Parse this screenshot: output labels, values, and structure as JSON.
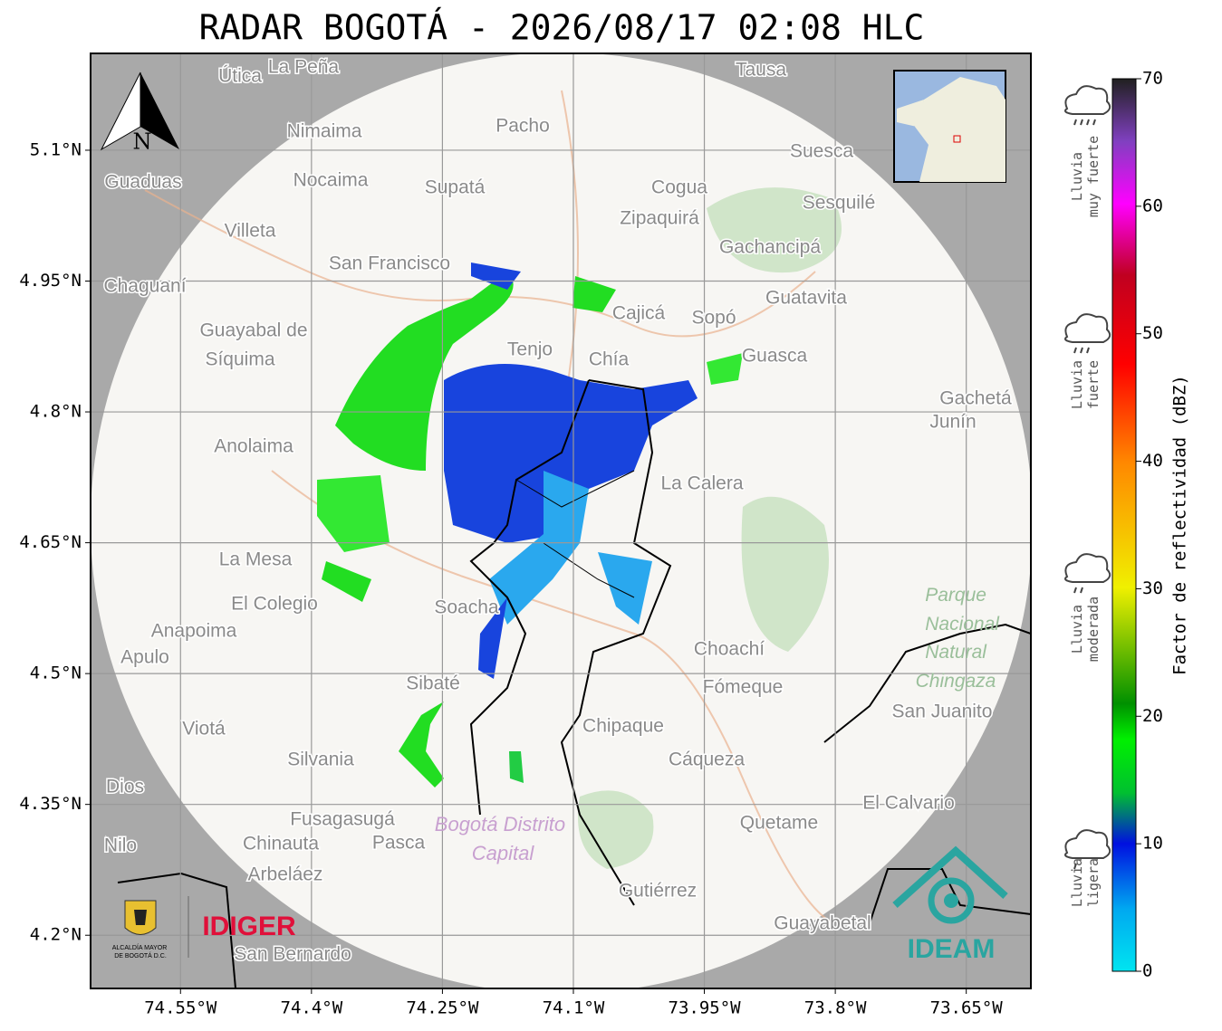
{
  "title": "RADAR BOGOTÁ - 2026/08/17 02:08 HLC",
  "map": {
    "xlim": [
      -74.653,
      -73.576
    ],
    "ylim": [
      4.139,
      5.211
    ],
    "grid": true,
    "xticks": [
      {
        "value": -74.55,
        "label": "74.55°W"
      },
      {
        "value": -74.4,
        "label": "74.4°W"
      },
      {
        "value": -74.25,
        "label": "74.25°W"
      },
      {
        "value": -74.1,
        "label": "74.1°W"
      },
      {
        "value": -73.95,
        "label": "73.95°W"
      },
      {
        "value": -73.8,
        "label": "73.8°W"
      },
      {
        "value": -73.65,
        "label": "73.65°W"
      }
    ],
    "yticks": [
      {
        "value": 5.1,
        "label": "5.1°N"
      },
      {
        "value": 4.95,
        "label": "4.95°N"
      },
      {
        "value": 4.8,
        "label": "4.8°N"
      },
      {
        "value": 4.65,
        "label": "4.65°N"
      },
      {
        "value": 4.5,
        "label": "4.5°N"
      },
      {
        "value": 4.35,
        "label": "4.35°N"
      },
      {
        "value": 4.2,
        "label": "4.2°N"
      }
    ]
  },
  "places": [
    "Útica",
    "La Peña",
    "Tausa",
    "Pacho",
    "Nimaima",
    "Guaduas",
    "Nocaima",
    "Supatá",
    "Cogua",
    "Suesca",
    "Sesquilé",
    "Zipaquirá",
    "Villeta",
    "Gachancipá",
    "San Francisco",
    "Chaguaní",
    "Guatavita",
    "Cajicá",
    "Sopó",
    "Guayabal de",
    "Síquima",
    "Tenjo",
    "Chía",
    "Guasca",
    "Gachetá",
    "Junín",
    "Anolaima",
    "La Calera",
    "La Mesa",
    "El Colegio",
    "Soacha",
    "Anapoima",
    "Apulo",
    "Choachí",
    "Fómeque",
    "Sibaté",
    "San Juanito",
    "Viotá",
    "Chipaque",
    "Silvania",
    "Cáqueza",
    "El Calvario",
    "Fusagasugá",
    "Quetame",
    "Nilo",
    "Chinauta",
    "Pasca",
    "Arbeláez",
    "Gutiérrez",
    "Guayabetal",
    "San Bernardo",
    "Dios"
  ],
  "park": [
    "Parque",
    "Nacional",
    "Natural",
    "Chingaza"
  ],
  "district": [
    "Bogotá Distrito",
    "Capital"
  ],
  "north_label": "N",
  "logos": {
    "alcaldia": [
      "ALCALDÍA MAYOR",
      "DE BOGOTÁ D.C."
    ],
    "idiger": "IDIGER",
    "ideam": "IDEAM"
  },
  "colorbar": {
    "label": "Factor de reflectividad (dBZ)",
    "lim": [
      0,
      70
    ],
    "ticks": [
      0,
      10,
      20,
      30,
      40,
      50,
      60,
      70
    ]
  },
  "intensity_legend": [
    [
      "Lluvia",
      "muy fuerte"
    ],
    [
      "Lluvia",
      "fuerte"
    ],
    [
      "Lluvia",
      "moderada"
    ],
    [
      "Lluvia",
      "ligera"
    ]
  ]
}
